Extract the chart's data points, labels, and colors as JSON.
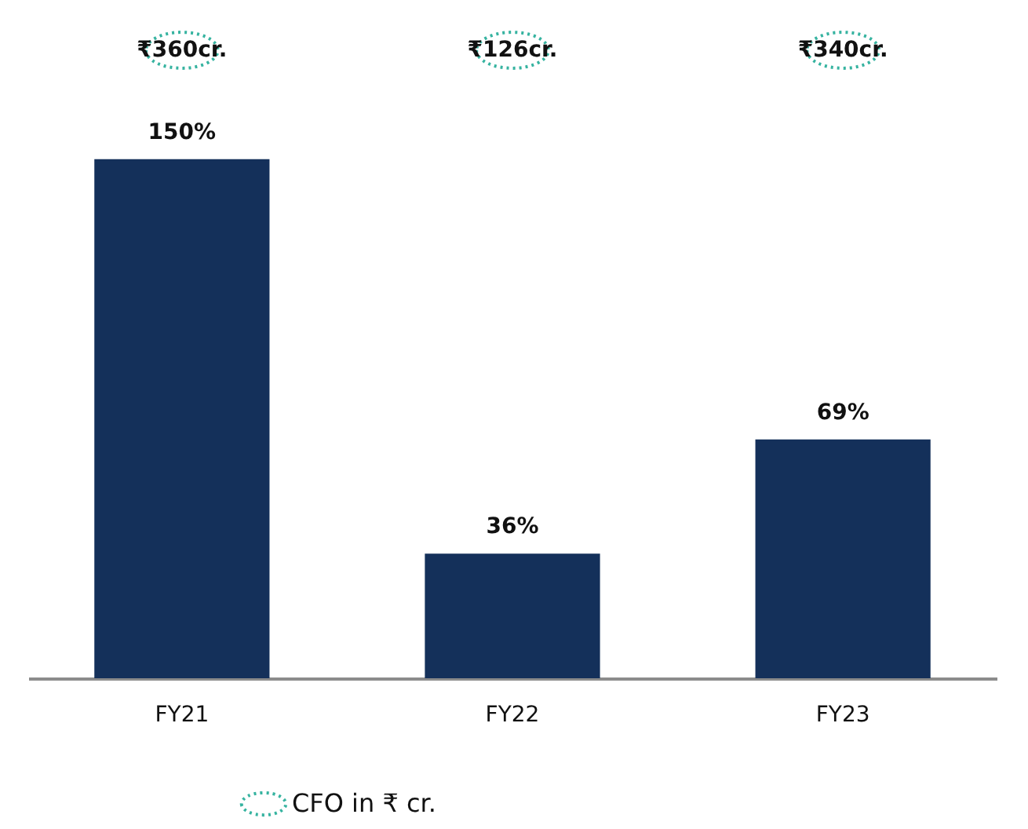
{
  "chart_data": {
    "type": "bar",
    "categories": [
      "FY21",
      "FY22",
      "FY23"
    ],
    "values": [
      150,
      36,
      69
    ],
    "value_labels": [
      "150%",
      "36%",
      "69%"
    ],
    "color": "#14305a",
    "annotations": [
      "₹360cr.",
      "₹126cr.",
      "₹340cr.",
      "CFO in ₹ cr."
    ],
    "grid": false,
    "legend": false
  }
}
